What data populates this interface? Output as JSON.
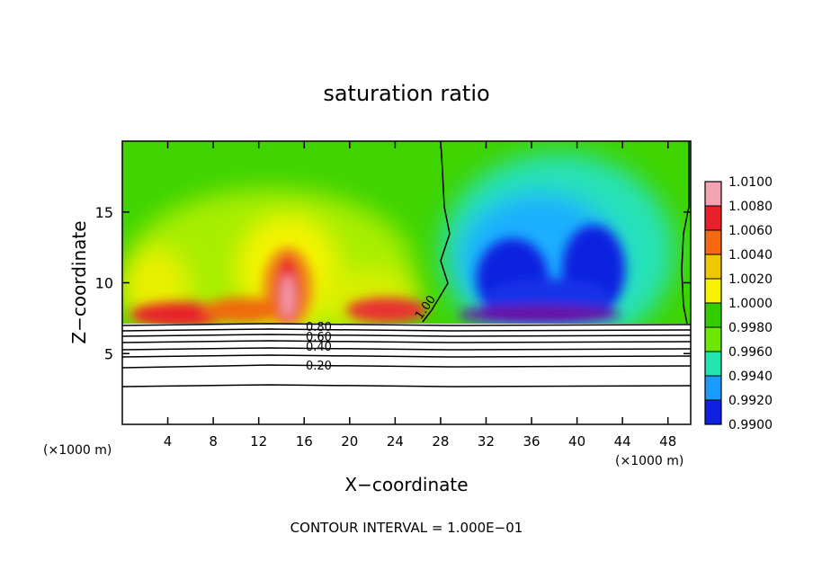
{
  "chart_data": {
    "type": "heatmap",
    "title": "saturation ratio",
    "xlabel": "X−coordinate",
    "ylabel": "Z−coordinate",
    "x_unit_left": "(×1000 m)",
    "x_unit_right": "(×1000 m)",
    "xlim": [
      0,
      50
    ],
    "ylim": [
      0,
      20
    ],
    "x_ticks": [
      4,
      8,
      12,
      16,
      20,
      24,
      28,
      32,
      36,
      40,
      44,
      48
    ],
    "y_ticks": [
      5,
      10,
      15
    ],
    "colorbar": {
      "labels": [
        "1.0100",
        "1.0080",
        "1.0060",
        "1.0040",
        "1.0020",
        "1.0000",
        "0.9980",
        "0.9960",
        "0.9940",
        "0.9920",
        "0.9900"
      ],
      "colors": [
        "#f4a3b2",
        "#e8202a",
        "#f46a10",
        "#f0c800",
        "#f7f200",
        "#33cc00",
        "#6ee800",
        "#22e6b0",
        "#1a9cff",
        "#1020e0",
        "#6a0aa0"
      ]
    },
    "cloud_base_z": 7.2,
    "boundary_x_label": "1.00",
    "contour_labels": [
      {
        "text": "0.80",
        "z": 6.9
      },
      {
        "text": "0.60",
        "z": 6.4
      },
      {
        "text": "0.40",
        "z": 5.8
      },
      {
        "text": "0.20",
        "z": 4.2
      }
    ],
    "footer": "CONTOUR INTERVAL = 1.000E−01"
  }
}
